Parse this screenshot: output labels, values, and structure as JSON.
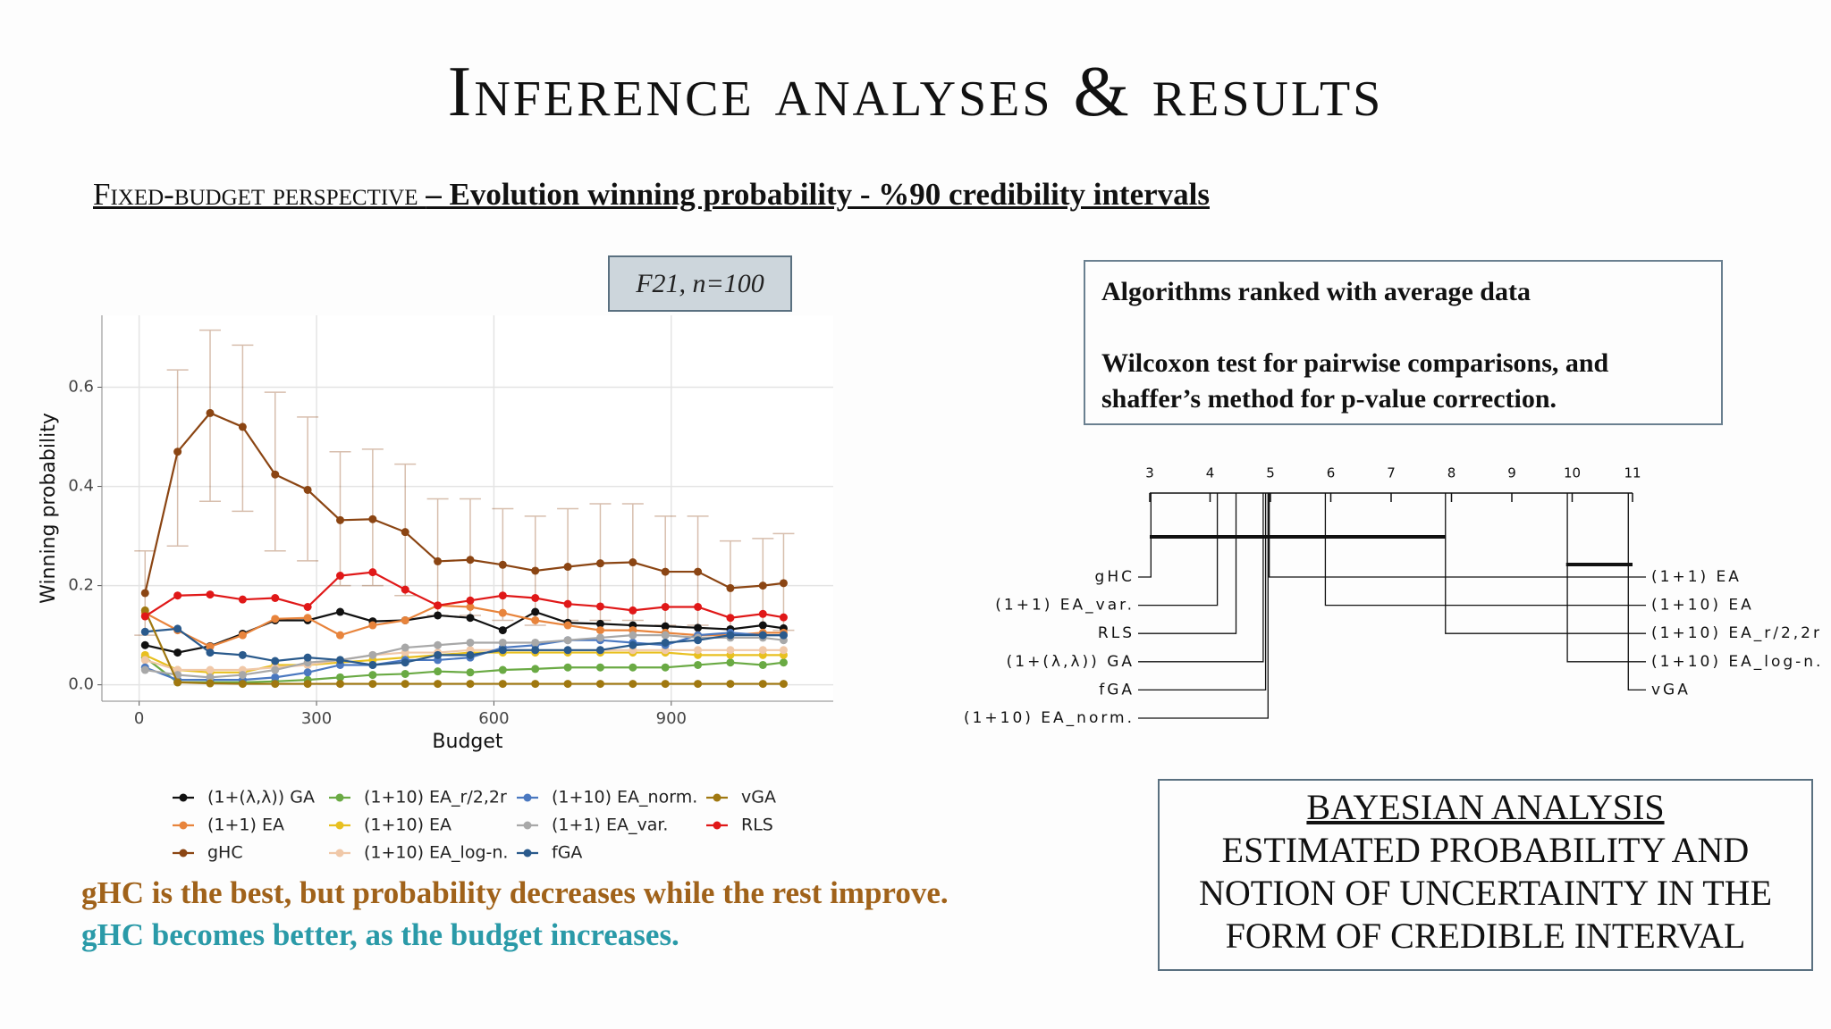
{
  "title": "Inference analyses & results",
  "subtitle": {
    "caps": "Fixed-budget perspective",
    "text": "– Evolution winning probability - %90 credibility intervals"
  },
  "info_box": {
    "line1": "Algorithms ranked with average data",
    "line2": "Wilcoxon test for pairwise comparisons, and shaffer’s method for p-value correction."
  },
  "findings": [
    "gHC is the best, but probability decreases while the rest improve.",
    "gHC becomes better, as the budget increases."
  ],
  "bayesian_box": {
    "heading": "BAYESIAN ANALYSIS",
    "text": "ESTIMATED PROBABILITY AND NOTION OF UNCERTAINTY IN THE FORM OF CREDIBLE INTERVAL"
  },
  "chart_data": [
    {
      "type": "line",
      "annotation": "F21, n=100",
      "x_label": "Budget",
      "y_label": "Winning probability",
      "xlim": [
        -63,
        1174
      ],
      "ylim": [
        -0.033,
        0.745
      ],
      "xticks": [
        0,
        300,
        600,
        900
      ],
      "yticks": [
        {
          "value": 0,
          "label": "0.0"
        },
        0.2,
        0.4,
        0.6
      ],
      "grid": true,
      "x": [
        10,
        65,
        120,
        175,
        230,
        285,
        340,
        395,
        450,
        505,
        560,
        615,
        670,
        725,
        780,
        835,
        890,
        945,
        1000,
        1055,
        1090
      ],
      "series": [
        {
          "name": "(1+(λ,λ)) GA",
          "color": "#111111",
          "values": [
            0.08,
            0.065,
            0.078,
            0.103,
            0.13,
            0.13,
            0.147,
            0.128,
            0.13,
            0.14,
            0.135,
            0.11,
            0.147,
            0.125,
            0.123,
            0.12,
            0.118,
            0.115,
            0.112,
            0.12,
            0.114
          ]
        },
        {
          "name": "(1+1) EA",
          "color": "#e8843c",
          "values": [
            0.145,
            0.11,
            0.077,
            0.1,
            0.133,
            0.135,
            0.1,
            0.12,
            0.13,
            0.16,
            0.157,
            0.145,
            0.13,
            0.12,
            0.11,
            0.11,
            0.105,
            0.1,
            0.1,
            0.105,
            0.105
          ]
        },
        {
          "name": "gHC",
          "color": "#8b4513",
          "values": [
            0.185,
            0.47,
            0.548,
            0.52,
            0.424,
            0.393,
            0.332,
            0.334,
            0.308,
            0.249,
            0.252,
            0.242,
            0.23,
            0.238,
            0.245,
            0.247,
            0.228,
            0.228,
            0.195,
            0.2,
            0.205
          ],
          "lower": [
            0.1,
            0.28,
            0.37,
            0.35,
            0.27,
            0.25,
            0.2,
            0.2,
            0.18,
            0.14,
            0.14,
            0.13,
            0.12,
            0.13,
            0.13,
            0.13,
            0.12,
            0.12,
            0.1,
            0.1,
            0.11
          ],
          "upper": [
            0.27,
            0.635,
            0.715,
            0.685,
            0.59,
            0.54,
            0.47,
            0.475,
            0.445,
            0.375,
            0.375,
            0.355,
            0.34,
            0.355,
            0.365,
            0.365,
            0.34,
            0.34,
            0.29,
            0.295,
            0.305
          ]
        },
        {
          "name": "(1+10) EA_r/2,2r",
          "color": "#6aaa44",
          "values": [
            0.055,
            0.005,
            0.005,
            0.005,
            0.007,
            0.01,
            0.015,
            0.02,
            0.022,
            0.027,
            0.025,
            0.03,
            0.032,
            0.035,
            0.035,
            0.035,
            0.035,
            0.04,
            0.045,
            0.04,
            0.045
          ]
        },
        {
          "name": "(1+10) EA",
          "color": "#e8c020",
          "values": [
            0.06,
            0.03,
            0.025,
            0.025,
            0.04,
            0.04,
            0.045,
            0.05,
            0.055,
            0.06,
            0.065,
            0.065,
            0.065,
            0.065,
            0.065,
            0.065,
            0.065,
            0.06,
            0.06,
            0.06,
            0.06
          ]
        },
        {
          "name": "(1+10) EA_log-n.",
          "color": "#f0c8a8",
          "values": [
            0.05,
            0.03,
            0.03,
            0.03,
            0.035,
            0.04,
            0.05,
            0.06,
            0.065,
            0.065,
            0.07,
            0.07,
            0.07,
            0.07,
            0.07,
            0.07,
            0.07,
            0.07,
            0.07,
            0.07,
            0.07
          ]
        },
        {
          "name": "(1+10) EA_norm.",
          "color": "#4a78c0",
          "values": [
            0.035,
            0.01,
            0.01,
            0.01,
            0.015,
            0.025,
            0.04,
            0.04,
            0.05,
            0.05,
            0.055,
            0.075,
            0.08,
            0.09,
            0.09,
            0.085,
            0.08,
            0.1,
            0.105,
            0.1,
            0.1
          ]
        },
        {
          "name": "(1+1) EA_var.",
          "color": "#a8a8a8",
          "values": [
            0.03,
            0.02,
            0.015,
            0.02,
            0.03,
            0.045,
            0.05,
            0.06,
            0.075,
            0.08,
            0.085,
            0.085,
            0.085,
            0.09,
            0.095,
            0.1,
            0.1,
            0.095,
            0.095,
            0.095,
            0.09
          ]
        },
        {
          "name": "fGA",
          "color": "#2a5a8c",
          "values": [
            0.107,
            0.113,
            0.065,
            0.06,
            0.048,
            0.055,
            0.05,
            0.04,
            0.045,
            0.06,
            0.06,
            0.07,
            0.07,
            0.07,
            0.07,
            0.08,
            0.085,
            0.09,
            0.1,
            0.1,
            0.1
          ]
        },
        {
          "name": "vGA",
          "color": "#a07810",
          "values": [
            0.15,
            0.005,
            0.003,
            0.002,
            0.002,
            0.002,
            0.002,
            0.002,
            0.002,
            0.002,
            0.002,
            0.002,
            0.002,
            0.002,
            0.002,
            0.002,
            0.002,
            0.002,
            0.002,
            0.002,
            0.002
          ]
        },
        {
          "name": "RLS",
          "color": "#e01818",
          "values": [
            0.138,
            0.18,
            0.182,
            0.172,
            0.175,
            0.157,
            0.22,
            0.227,
            0.192,
            0.16,
            0.17,
            0.18,
            0.175,
            0.163,
            0.158,
            0.15,
            0.157,
            0.157,
            0.135,
            0.143,
            0.136
          ]
        }
      ]
    },
    {
      "type": "cd",
      "xlim": [
        3,
        11
      ],
      "xticks": [
        3,
        4,
        5,
        6,
        7,
        8,
        9,
        10,
        11
      ],
      "categories": [
        "gHC",
        "(1+1) EA_var.",
        "RLS",
        "(1+(λ,λ)) GA",
        "fGA",
        "(1+10) EA_norm.",
        "(1+1) EA",
        "(1+10) EA",
        "(1+10) EA_r/2,2r",
        "(1+10) EA_log-n.",
        "vGA"
      ],
      "values": [
        3.02,
        4.12,
        4.43,
        4.88,
        4.92,
        4.96,
        4.98,
        5.91,
        7.9,
        9.92,
        10.93
      ],
      "cliques": [
        [
          3.0,
          7.9
        ],
        [
          9.9,
          11.0
        ]
      ]
    }
  ]
}
